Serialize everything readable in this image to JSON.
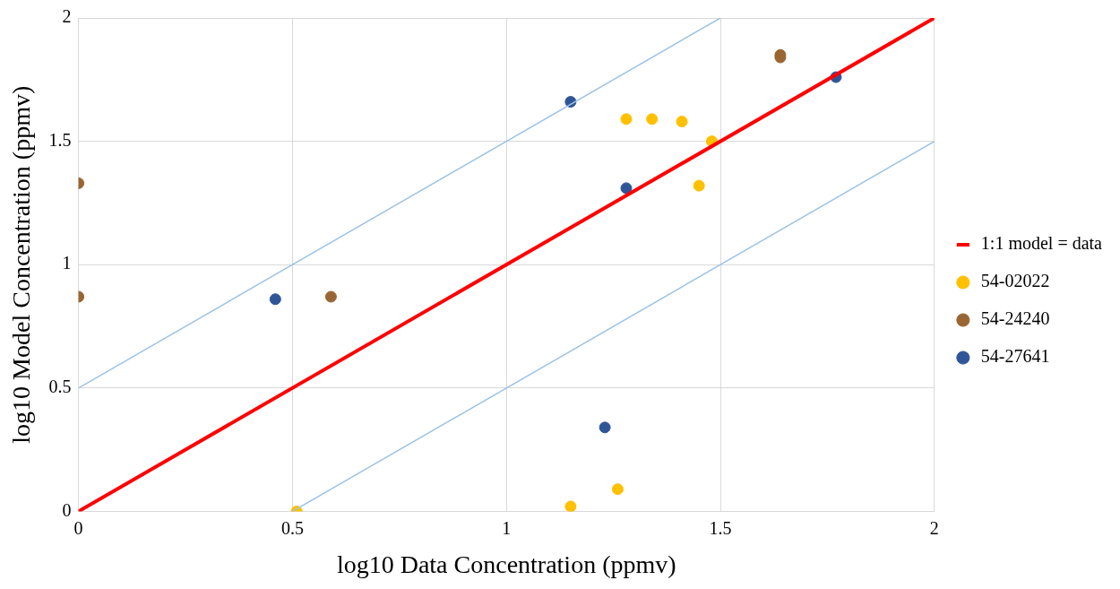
{
  "chart_data": {
    "type": "scatter",
    "xlabel": "log10 Data Concentration (ppmv)",
    "ylabel": "log10 Model Concentration (ppmv)",
    "xlim": [
      0,
      2
    ],
    "ylim": [
      0,
      2
    ],
    "xticks": [
      0,
      0.5,
      1,
      1.5,
      2
    ],
    "yticks": [
      0,
      0.5,
      1,
      1.5,
      2
    ],
    "grid": true,
    "legend": "right",
    "series": [
      {
        "name": "1:1 model = data",
        "type": "line",
        "marker": "none",
        "color": "#ff0000",
        "x": [
          0,
          2
        ],
        "values": [
          0,
          2
        ]
      },
      {
        "type": "line",
        "marker": "none",
        "color": "#9dc3e6",
        "x": [
          0,
          1.5
        ],
        "values": [
          0.5,
          2
        ]
      },
      {
        "type": "line",
        "marker": "none",
        "color": "#9dc3e6",
        "x": [
          0.5,
          2
        ],
        "values": [
          0,
          1.5
        ]
      },
      {
        "name": "54-02022",
        "marker": "circle",
        "color": "#ffc000",
        "x": [
          0.51,
          1.15,
          1.26,
          1.28,
          1.34,
          1.41,
          1.48,
          1.45
        ],
        "values": [
          0,
          0.02,
          0.09,
          1.59,
          1.59,
          1.58,
          1.5,
          1.32
        ]
      },
      {
        "name": "54-24240",
        "marker": "circle",
        "color": "#996633",
        "x": [
          0,
          0,
          0.59,
          1.64,
          1.64
        ],
        "values": [
          1.33,
          0.87,
          0.87,
          1.85,
          1.84
        ]
      },
      {
        "name": "54-27641",
        "marker": "circle",
        "color": "#2f5597",
        "x": [
          0.46,
          1.15,
          1.28,
          1.23,
          1.77
        ],
        "values": [
          0.86,
          1.66,
          1.31,
          0.34,
          1.76
        ]
      }
    ]
  }
}
